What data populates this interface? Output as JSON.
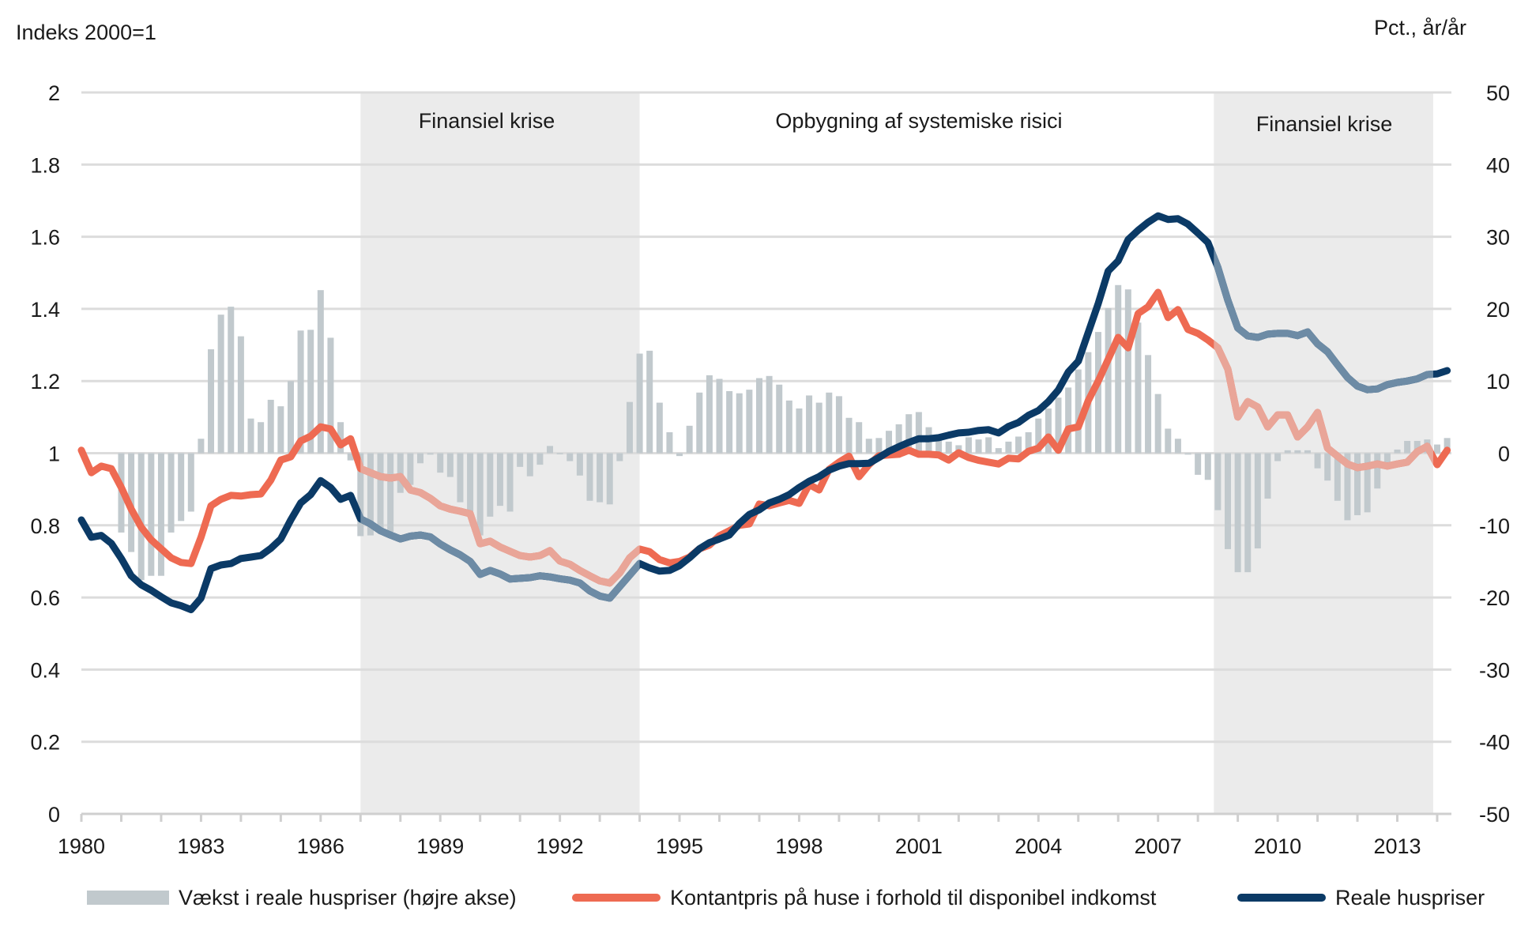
{
  "chart_data": {
    "type": "bar+line",
    "left_axis": {
      "label": "Indeks 2000=1",
      "range": [
        0,
        2
      ],
      "ticks": [
        "0",
        "0.2",
        "0.4",
        "0.6",
        "0.8",
        "1",
        "1.2",
        "1.4",
        "1.6",
        "1.8",
        "2"
      ],
      "tick_values": [
        0,
        0.2,
        0.4,
        0.6,
        0.8,
        1,
        1.2,
        1.4,
        1.6,
        1.8,
        2
      ]
    },
    "right_axis": {
      "label": "Pct.,  år/år",
      "range": [
        -50,
        50
      ],
      "ticks": [
        "-50",
        "-40",
        "-30",
        "-20",
        "-10",
        "0",
        "10",
        "20",
        "30",
        "40",
        "50"
      ],
      "tick_values": [
        -50,
        -40,
        -30,
        -20,
        -10,
        0,
        10,
        20,
        30,
        40,
        50
      ]
    },
    "x_axis": {
      "range": [
        1980,
        2014.35
      ],
      "tick_labels": [
        "1980",
        "1983",
        "1986",
        "1989",
        "1992",
        "1995",
        "1998",
        "2001",
        "2004",
        "2007",
        "2010",
        "2013"
      ],
      "tick_label_years": [
        1980,
        1983,
        1986,
        1989,
        1992,
        1995,
        1998,
        2001,
        2004,
        2007,
        2010,
        2013
      ],
      "minor_ticks_every_year": true,
      "frequency": "quarterly"
    },
    "grid": true,
    "legend_position": "bottom",
    "shaded_periods": [
      {
        "label": "Finansiel krise",
        "start": 1987.0,
        "end": 1994.0
      },
      {
        "label": "Opbygning af systemiske risici",
        "start": 1994.0,
        "end": 2008.4,
        "shaded": false
      },
      {
        "label": "Finansiel krise",
        "start": 2008.4,
        "end": 2013.9
      }
    ],
    "series": [
      {
        "name": "Vækst i reale huspriser (højre akse)",
        "kind": "bar",
        "axis": "right",
        "color": "#C1C9CD",
        "start": 1981.0,
        "values": [
          -11.0,
          -13.7,
          -17.6,
          -17.0,
          -17.0,
          -11.0,
          -9.4,
          -8.1,
          2.0,
          14.4,
          19.2,
          20.3,
          16.2,
          4.8,
          4.3,
          7.4,
          6.5,
          10.0,
          17.0,
          17.1,
          22.6,
          16.0,
          4.3,
          -1.0,
          -11.5,
          -11.4,
          -10.4,
          -10.9,
          -5.5,
          -4.4,
          -1.4,
          -0.2,
          -2.7,
          -3.3,
          -6.8,
          -8.1,
          -11.4,
          -8.8,
          -7.3,
          -8.1,
          -1.9,
          -3.2,
          -1.6,
          1.0,
          0.0,
          -1.1,
          -3.1,
          -6.6,
          -6.8,
          -7.1,
          -1.1,
          7.1,
          13.8,
          14.2,
          7.0,
          2.9,
          -0.4,
          3.8,
          8.4,
          10.8,
          10.3,
          8.6,
          8.3,
          8.8,
          10.4,
          10.7,
          9.5,
          7.3,
          6.2,
          8.0,
          7.0,
          8.4,
          7.9,
          4.9,
          4.3,
          2.0,
          2.1,
          3.1,
          4.0,
          5.4,
          5.7,
          3.6,
          2.6,
          1.6,
          1.1,
          2.2,
          1.9,
          2.2,
          0.7,
          1.6,
          2.3,
          2.9,
          4.8,
          6.2,
          7.7,
          9.1,
          11.6,
          14.0,
          16.8,
          20.1,
          23.3,
          22.7,
          18.1,
          13.6,
          8.2,
          3.4,
          2.0,
          -0.2,
          -3.0,
          -3.7,
          -7.9,
          -13.3,
          -16.5,
          -16.5,
          -13.2,
          -6.3,
          -1.1,
          0.4,
          0.4,
          0.4,
          -2.1,
          -3.8,
          -6.6,
          -9.3,
          -8.6,
          -8.2,
          -4.9,
          -1.4,
          0.5,
          1.7,
          1.7,
          1.9,
          1.2,
          2.1
        ]
      },
      {
        "name": "Kontantpris på huse i forhold til disponibel indkomst",
        "kind": "line",
        "axis": "left",
        "color": "#EE6A52",
        "muted_color": "#E9A598",
        "start": 1980.0,
        "values": [
          1.008,
          0.946,
          0.964,
          0.957,
          0.905,
          0.845,
          0.795,
          0.76,
          0.735,
          0.71,
          0.697,
          0.694,
          0.767,
          0.854,
          0.872,
          0.883,
          0.881,
          0.885,
          0.887,
          0.925,
          0.981,
          0.99,
          1.034,
          1.047,
          1.073,
          1.067,
          1.023,
          1.04,
          0.957,
          0.946,
          0.935,
          0.931,
          0.935,
          0.898,
          0.891,
          0.875,
          0.854,
          0.845,
          0.839,
          0.832,
          0.749,
          0.756,
          0.74,
          0.728,
          0.716,
          0.712,
          0.716,
          0.73,
          0.701,
          0.692,
          0.675,
          0.66,
          0.646,
          0.64,
          0.668,
          0.71,
          0.734,
          0.727,
          0.705,
          0.696,
          0.7,
          0.712,
          0.735,
          0.745,
          0.771,
          0.785,
          0.8,
          0.804,
          0.859,
          0.854,
          0.862,
          0.869,
          0.861,
          0.913,
          0.898,
          0.955,
          0.975,
          0.992,
          0.935,
          0.968,
          0.993,
          0.995,
          0.997,
          1.008,
          0.997,
          0.997,
          0.995,
          0.981,
          1.001,
          0.988,
          0.98,
          0.975,
          0.97,
          0.986,
          0.984,
          1.005,
          1.014,
          1.045,
          1.008,
          1.067,
          1.073,
          1.146,
          1.2,
          1.26,
          1.321,
          1.292,
          1.387,
          1.406,
          1.446,
          1.376,
          1.398,
          1.343,
          1.332,
          1.314,
          1.292,
          1.233,
          1.1,
          1.143,
          1.128,
          1.073,
          1.106,
          1.106,
          1.045,
          1.073,
          1.113,
          1.014,
          0.992,
          0.97,
          0.96,
          0.964,
          0.97,
          0.964,
          0.97,
          0.975,
          1.004,
          1.019,
          0.968,
          1.008
        ]
      },
      {
        "name": "Reale huspriser",
        "kind": "line",
        "axis": "left",
        "color": "#0B3A66",
        "muted_color": "#6D8BA5",
        "start": 1980.0,
        "values": [
          0.815,
          0.767,
          0.772,
          0.75,
          0.708,
          0.66,
          0.635,
          0.62,
          0.602,
          0.585,
          0.577,
          0.566,
          0.598,
          0.68,
          0.69,
          0.694,
          0.708,
          0.712,
          0.716,
          0.736,
          0.762,
          0.815,
          0.862,
          0.885,
          0.924,
          0.905,
          0.872,
          0.883,
          0.818,
          0.804,
          0.785,
          0.773,
          0.762,
          0.77,
          0.773,
          0.768,
          0.748,
          0.732,
          0.718,
          0.7,
          0.664,
          0.675,
          0.665,
          0.651,
          0.653,
          0.655,
          0.66,
          0.657,
          0.652,
          0.648,
          0.64,
          0.618,
          0.604,
          0.598,
          0.63,
          0.662,
          0.694,
          0.682,
          0.673,
          0.675,
          0.688,
          0.71,
          0.735,
          0.752,
          0.762,
          0.773,
          0.805,
          0.83,
          0.843,
          0.862,
          0.872,
          0.885,
          0.905,
          0.922,
          0.935,
          0.953,
          0.964,
          0.971,
          0.971,
          0.972,
          0.988,
          1.005,
          1.018,
          1.03,
          1.04,
          1.04,
          1.043,
          1.05,
          1.056,
          1.058,
          1.063,
          1.065,
          1.056,
          1.074,
          1.085,
          1.105,
          1.118,
          1.143,
          1.175,
          1.225,
          1.255,
          1.335,
          1.415,
          1.505,
          1.533,
          1.592,
          1.618,
          1.64,
          1.658,
          1.648,
          1.65,
          1.635,
          1.61,
          1.584,
          1.515,
          1.424,
          1.347,
          1.325,
          1.321,
          1.33,
          1.332,
          1.332,
          1.326,
          1.336,
          1.303,
          1.281,
          1.245,
          1.21,
          1.186,
          1.176,
          1.178,
          1.19,
          1.196,
          1.2,
          1.206,
          1.218,
          1.22,
          1.229
        ]
      }
    ],
    "colors": {
      "shade": "#EBEBEB",
      "grid": "#DCDCDC",
      "text": "#1A1A1A"
    }
  }
}
